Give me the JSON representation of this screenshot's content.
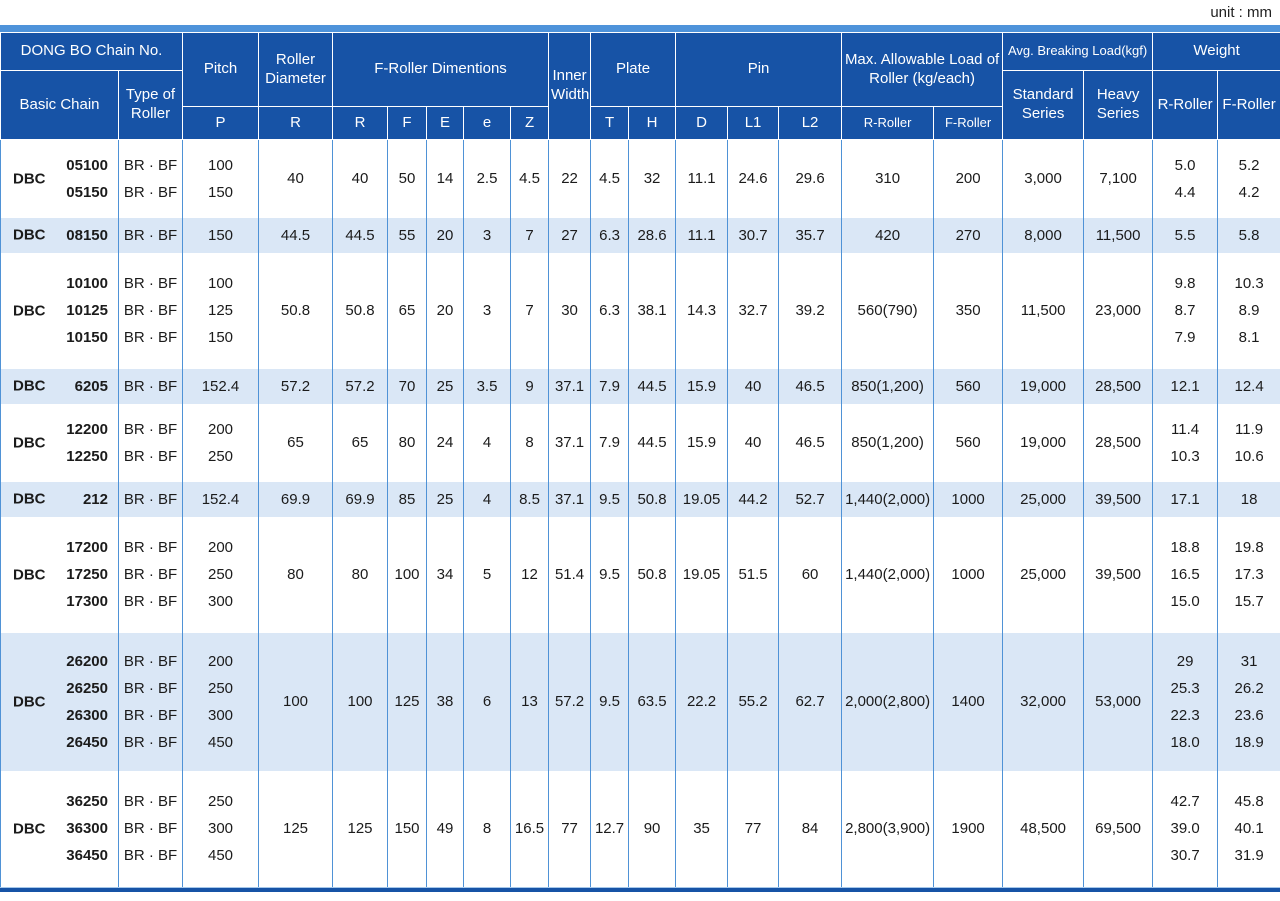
{
  "unit_label": "unit : mm",
  "colors": {
    "header_bg": "#1753a6",
    "stripe_bg": "#dae7f6",
    "grid_line": "#4f92d6",
    "top_strip": "#4e93da"
  },
  "header": {
    "dong_bo_chain_no": "DONG BO Chain No.",
    "basic_chain": "Basic Chain",
    "type_of_roller": "Type of Roller",
    "pitch": "Pitch",
    "pitch_sub": "P",
    "roller_diameter": "Roller Diameter",
    "roller_diameter_sub": "R",
    "f_roller_dimentions": "F-Roller Dimentions",
    "f_roller_subs": [
      "R",
      "F",
      "E",
      "e",
      "Z"
    ],
    "inner_width": "Inner Width",
    "plate": "Plate",
    "plate_subs": [
      "T",
      "H"
    ],
    "pin": "Pin",
    "pin_subs": [
      "D",
      "L1",
      "L2"
    ],
    "max_allowable_load": "Max. Allowable Load of Roller (kg/each)",
    "max_load_subs": [
      "R-Roller",
      "F-Roller"
    ],
    "avg_breaking_load": "Avg. Breaking Load(kgf)",
    "avg_breaking_subs": [
      "Standard Series",
      "Heavy Series"
    ],
    "weight": "Weight",
    "weight_subs": [
      "R-Roller",
      "F-Roller"
    ]
  },
  "rows": [
    {
      "prefix": "DBC",
      "chains": [
        "05100",
        "05150"
      ],
      "types": [
        "BR · BF",
        "BR · BF"
      ],
      "pitch": [
        "100",
        "150"
      ],
      "roller_dia": "40",
      "fr_r": "40",
      "fr_f": "50",
      "fr_e": "14",
      "fr_e2": "2.5",
      "fr_z": "4.5",
      "inner": "22",
      "plate_t": "4.5",
      "plate_h": "32",
      "pin_d": "11.1",
      "pin_l1": "24.6",
      "pin_l2": "29.6",
      "max_r": "310",
      "max_f": "200",
      "std_series": "3,000",
      "heavy_series": "7,100",
      "weight_r": [
        "5.0",
        "4.4"
      ],
      "weight_f": [
        "5.2",
        "4.2"
      ],
      "shade": false
    },
    {
      "prefix": "DBC",
      "chains": [
        "08150"
      ],
      "types": [
        "BR · BF"
      ],
      "pitch": [
        "150"
      ],
      "roller_dia": "44.5",
      "fr_r": "44.5",
      "fr_f": "55",
      "fr_e": "20",
      "fr_e2": "3",
      "fr_z": "7",
      "inner": "27",
      "plate_t": "6.3",
      "plate_h": "28.6",
      "pin_d": "11.1",
      "pin_l1": "30.7",
      "pin_l2": "35.7",
      "max_r": "420",
      "max_f": "270",
      "std_series": "8,000",
      "heavy_series": "11,500",
      "weight_r": [
        "5.5"
      ],
      "weight_f": [
        "5.8"
      ],
      "shade": true
    },
    {
      "prefix": "DBC",
      "chains": [
        "10100",
        "10125",
        "10150"
      ],
      "types": [
        "BR · BF",
        "BR · BF",
        "BR · BF"
      ],
      "pitch": [
        "100",
        "125",
        "150"
      ],
      "roller_dia": "50.8",
      "fr_r": "50.8",
      "fr_f": "65",
      "fr_e": "20",
      "fr_e2": "3",
      "fr_z": "7",
      "inner": "30",
      "plate_t": "6.3",
      "plate_h": "38.1",
      "pin_d": "14.3",
      "pin_l1": "32.7",
      "pin_l2": "39.2",
      "max_r": "560(790)",
      "max_f": "350",
      "std_series": "11,500",
      "heavy_series": "23,000",
      "weight_r": [
        "9.8",
        "8.7",
        "7.9"
      ],
      "weight_f": [
        "10.3",
        "8.9",
        "8.1"
      ],
      "shade": false
    },
    {
      "prefix": "DBC",
      "chains": [
        "6205"
      ],
      "types": [
        "BR · BF"
      ],
      "pitch": [
        "152.4"
      ],
      "roller_dia": "57.2",
      "fr_r": "57.2",
      "fr_f": "70",
      "fr_e": "25",
      "fr_e2": "3.5",
      "fr_z": "9",
      "inner": "37.1",
      "plate_t": "7.9",
      "plate_h": "44.5",
      "pin_d": "15.9",
      "pin_l1": "40",
      "pin_l2": "46.5",
      "max_r": "850(1,200)",
      "max_f": "560",
      "std_series": "19,000",
      "heavy_series": "28,500",
      "weight_r": [
        "12.1"
      ],
      "weight_f": [
        "12.4"
      ],
      "shade": true
    },
    {
      "prefix": "DBC",
      "chains": [
        "12200",
        "12250"
      ],
      "types": [
        "BR · BF",
        "BR · BF"
      ],
      "pitch": [
        "200",
        "250"
      ],
      "roller_dia": "65",
      "fr_r": "65",
      "fr_f": "80",
      "fr_e": "24",
      "fr_e2": "4",
      "fr_z": "8",
      "inner": "37.1",
      "plate_t": "7.9",
      "plate_h": "44.5",
      "pin_d": "15.9",
      "pin_l1": "40",
      "pin_l2": "46.5",
      "max_r": "850(1,200)",
      "max_f": "560",
      "std_series": "19,000",
      "heavy_series": "28,500",
      "weight_r": [
        "11.4",
        "10.3"
      ],
      "weight_f": [
        "11.9",
        "10.6"
      ],
      "shade": false
    },
    {
      "prefix": "DBC",
      "chains": [
        "212"
      ],
      "types": [
        "BR · BF"
      ],
      "pitch": [
        "152.4"
      ],
      "roller_dia": "69.9",
      "fr_r": "69.9",
      "fr_f": "85",
      "fr_e": "25",
      "fr_e2": "4",
      "fr_z": "8.5",
      "inner": "37.1",
      "plate_t": "9.5",
      "plate_h": "50.8",
      "pin_d": "19.05",
      "pin_l1": "44.2",
      "pin_l2": "52.7",
      "max_r": "1,440(2,000)",
      "max_f": "1000",
      "std_series": "25,000",
      "heavy_series": "39,500",
      "weight_r": [
        "17.1"
      ],
      "weight_f": [
        "18"
      ],
      "shade": true
    },
    {
      "prefix": "DBC",
      "chains": [
        "17200",
        "17250",
        "17300"
      ],
      "types": [
        "BR · BF",
        "BR · BF",
        "BR · BF"
      ],
      "pitch": [
        "200",
        "250",
        "300"
      ],
      "roller_dia": "80",
      "fr_r": "80",
      "fr_f": "100",
      "fr_e": "34",
      "fr_e2": "5",
      "fr_z": "12",
      "inner": "51.4",
      "plate_t": "9.5",
      "plate_h": "50.8",
      "pin_d": "19.05",
      "pin_l1": "51.5",
      "pin_l2": "60",
      "max_r": "1,440(2,000)",
      "max_f": "1000",
      "std_series": "25,000",
      "heavy_series": "39,500",
      "weight_r": [
        "18.8",
        "16.5",
        "15.0"
      ],
      "weight_f": [
        "19.8",
        "17.3",
        "15.7"
      ],
      "shade": false
    },
    {
      "prefix": "DBC",
      "chains": [
        "26200",
        "26250",
        "26300",
        "26450"
      ],
      "types": [
        "BR · BF",
        "BR · BF",
        "BR · BF",
        "BR · BF"
      ],
      "pitch": [
        "200",
        "250",
        "300",
        "450"
      ],
      "roller_dia": "100",
      "fr_r": "100",
      "fr_f": "125",
      "fr_e": "38",
      "fr_e2": "6",
      "fr_z": "13",
      "inner": "57.2",
      "plate_t": "9.5",
      "plate_h": "63.5",
      "pin_d": "22.2",
      "pin_l1": "55.2",
      "pin_l2": "62.7",
      "max_r": "2,000(2,800)",
      "max_f": "1400",
      "std_series": "32,000",
      "heavy_series": "53,000",
      "weight_r": [
        "29",
        "25.3",
        "22.3",
        "18.0"
      ],
      "weight_f": [
        "31",
        "26.2",
        "23.6",
        "18.9"
      ],
      "shade": true
    },
    {
      "prefix": "DBC",
      "chains": [
        "36250",
        "36300",
        "36450"
      ],
      "types": [
        "BR · BF",
        "BR · BF",
        "BR · BF"
      ],
      "pitch": [
        "250",
        "300",
        "450"
      ],
      "roller_dia": "125",
      "fr_r": "125",
      "fr_f": "150",
      "fr_e": "49",
      "fr_e2": "8",
      "fr_z": "16.5",
      "inner": "77",
      "plate_t": "12.7",
      "plate_h": "90",
      "pin_d": "35",
      "pin_l1": "77",
      "pin_l2": "84",
      "max_r": "2,800(3,900)",
      "max_f": "1900",
      "std_series": "48,500",
      "heavy_series": "69,500",
      "weight_r": [
        "42.7",
        "39.0",
        "30.7"
      ],
      "weight_f": [
        "45.8",
        "40.1",
        "31.9"
      ],
      "shade": false
    }
  ]
}
